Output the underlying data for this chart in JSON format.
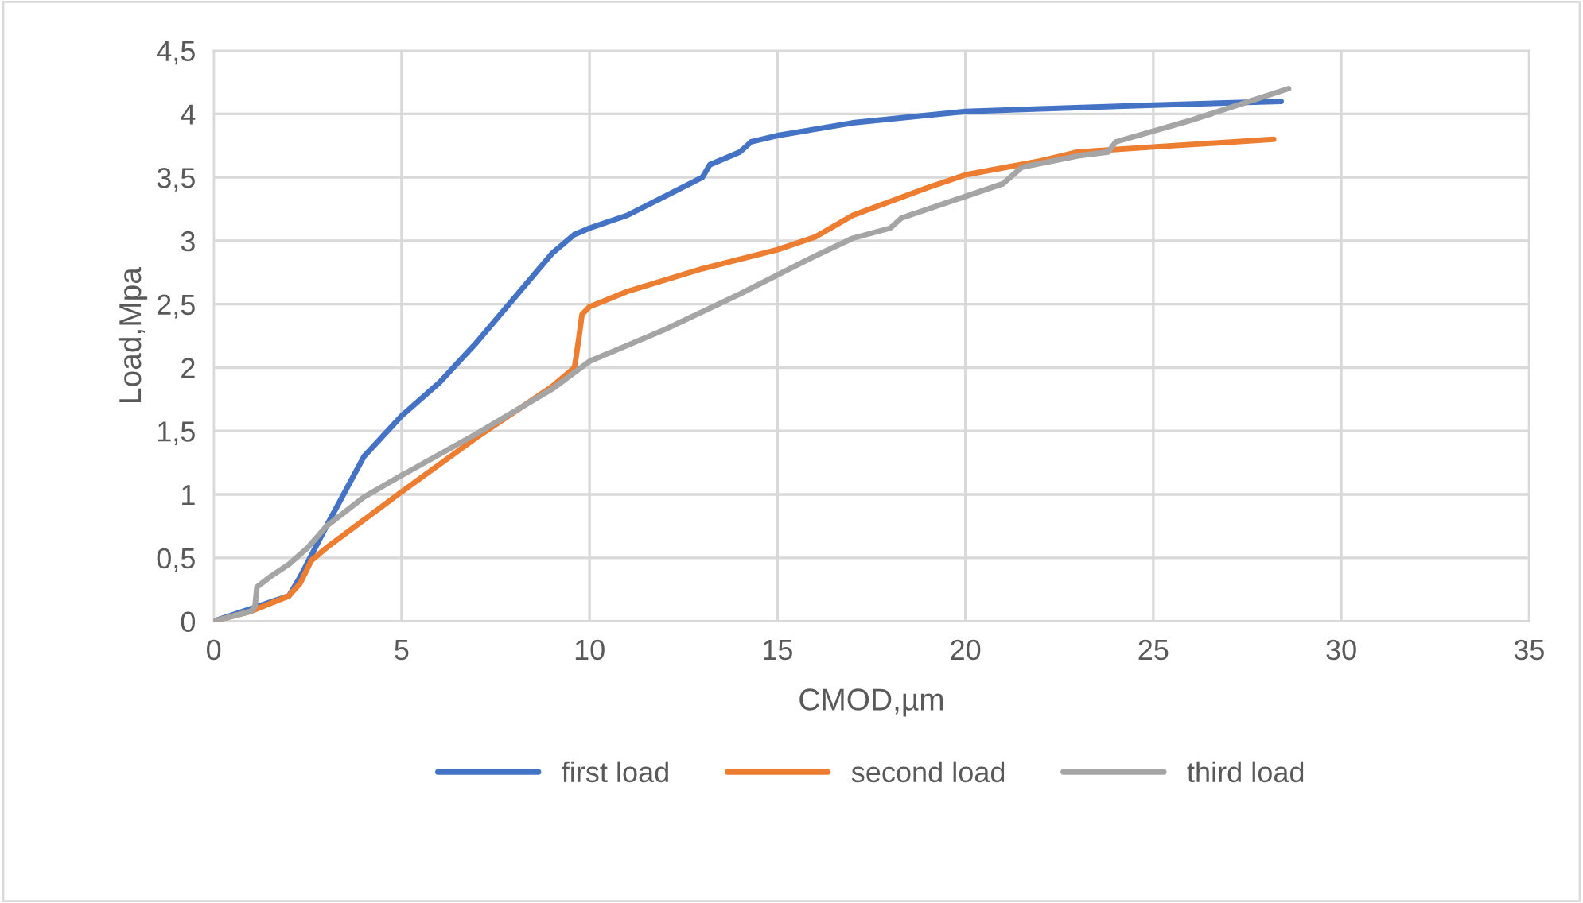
{
  "chart_data": {
    "type": "line",
    "xlabel": "CMOD,µm",
    "ylabel": "Load,Mpa",
    "xlim": [
      0,
      35
    ],
    "xticks": [
      0,
      5,
      10,
      15,
      20,
      25,
      30,
      35
    ],
    "ylim": [
      0,
      4.5
    ],
    "yticks": [
      0,
      {
        "value": 0.5,
        "label": "0,5"
      },
      1,
      {
        "value": 1.5,
        "label": "1,5"
      },
      2,
      {
        "value": 2.5,
        "label": "2,5"
      },
      3,
      {
        "value": 3.5,
        "label": "3,5"
      },
      4,
      {
        "value": 4.5,
        "label": "4,5"
      }
    ],
    "grid": true,
    "legend": "bottom",
    "marker": "none",
    "line_style": "solid",
    "series": [
      {
        "name": "first load",
        "color": "#4472c4",
        "x": [
          0,
          2,
          2.3,
          3,
          4,
          5,
          6,
          7,
          8,
          9,
          9.6,
          10,
          11,
          12,
          13,
          13.2,
          14,
          14.3,
          15,
          17,
          20,
          25,
          28.4
        ],
        "values": [
          0,
          0.2,
          0.35,
          0.75,
          1.3,
          1.62,
          1.88,
          2.2,
          2.55,
          2.9,
          3.05,
          3.1,
          3.2,
          3.35,
          3.5,
          3.6,
          3.7,
          3.78,
          3.83,
          3.93,
          4.02,
          4.07,
          4.1
        ]
      },
      {
        "name": "second load",
        "color": "#ed7d31",
        "x": [
          0,
          1,
          2,
          2.3,
          2.6,
          3,
          5,
          7,
          9,
          9.6,
          9.7,
          9.8,
          10,
          11,
          13,
          15,
          16,
          17,
          19,
          20,
          22,
          23,
          25,
          28.2
        ],
        "values": [
          0,
          0.08,
          0.2,
          0.3,
          0.48,
          0.58,
          1.02,
          1.45,
          1.85,
          2.0,
          2.2,
          2.42,
          2.48,
          2.6,
          2.78,
          2.93,
          3.03,
          3.2,
          3.42,
          3.52,
          3.63,
          3.7,
          3.74,
          3.8
        ]
      },
      {
        "name": "third load",
        "color": "#a5a5a5",
        "x": [
          0,
          1,
          1.1,
          1.15,
          1.5,
          2,
          2.5,
          3,
          4,
          5,
          7,
          9,
          10,
          12,
          14,
          16,
          17,
          18,
          18.3,
          20,
          21,
          21.5,
          23,
          23.8,
          24,
          26,
          28.6
        ],
        "values": [
          0,
          0.08,
          0.12,
          0.27,
          0.35,
          0.45,
          0.58,
          0.75,
          0.98,
          1.15,
          1.48,
          1.83,
          2.05,
          2.3,
          2.58,
          2.88,
          3.02,
          3.1,
          3.18,
          3.35,
          3.45,
          3.58,
          3.67,
          3.7,
          3.78,
          3.95,
          4.2
        ]
      }
    ]
  }
}
